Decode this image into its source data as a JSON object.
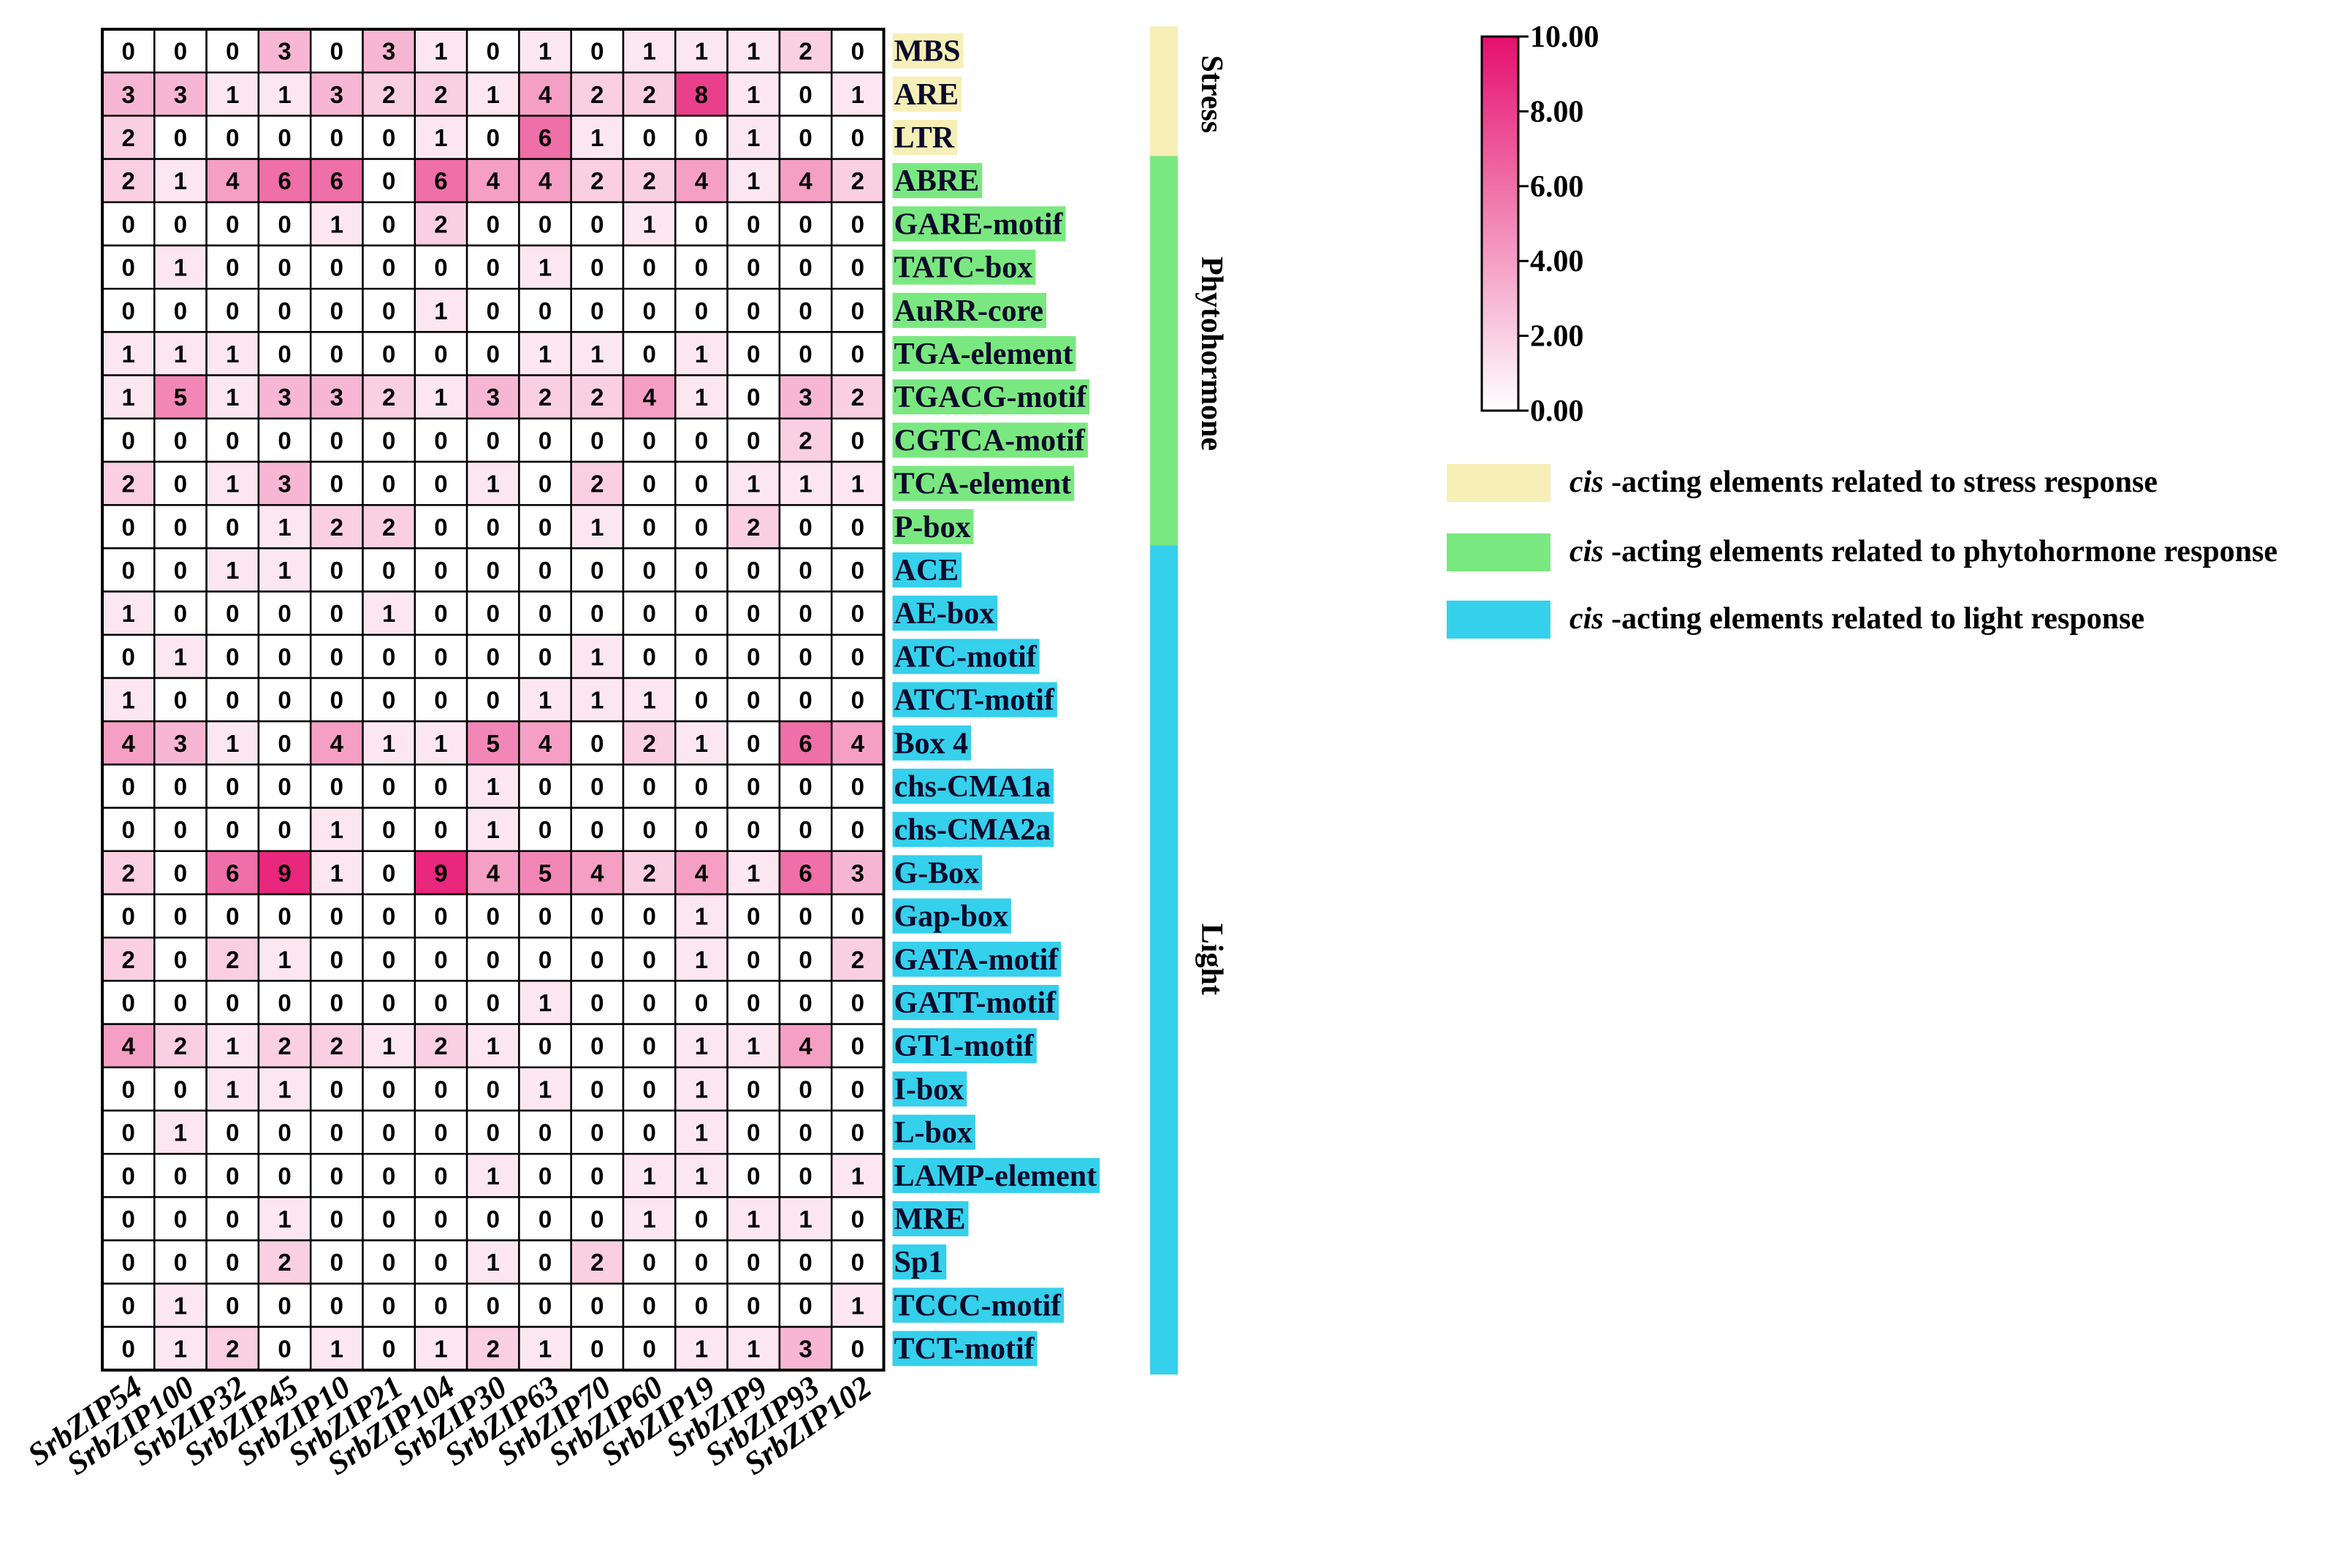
{
  "chart_data": {
    "type": "heatmap",
    "title": "",
    "xlabel": "",
    "ylabel": "",
    "columns": [
      "SrbZIP54",
      "SrbZIP100",
      "SrbZIP32",
      "SrbZIP45",
      "SrbZIP10",
      "SrbZIP21",
      "SrbZIP104",
      "SrbZIP30",
      "SrbZIP63",
      "SrbZIP70",
      "SrbZIP60",
      "SrbZIP19",
      "SrbZIP9",
      "SrbZIP93",
      "SrbZIP102"
    ],
    "rows": [
      {
        "label": "MBS",
        "group": "stress",
        "values": [
          0,
          0,
          0,
          3,
          0,
          3,
          1,
          0,
          1,
          0,
          1,
          1,
          1,
          2,
          0
        ]
      },
      {
        "label": "ARE",
        "group": "stress",
        "values": [
          3,
          3,
          1,
          1,
          3,
          2,
          2,
          1,
          4,
          2,
          2,
          8,
          1,
          0,
          1
        ]
      },
      {
        "label": "LTR",
        "group": "stress",
        "values": [
          2,
          0,
          0,
          0,
          0,
          0,
          1,
          0,
          6,
          1,
          0,
          0,
          1,
          0,
          0
        ]
      },
      {
        "label": "ABRE",
        "group": "phyto",
        "values": [
          2,
          1,
          4,
          6,
          6,
          0,
          6,
          4,
          4,
          2,
          2,
          4,
          1,
          4,
          2
        ]
      },
      {
        "label": "GARE-motif",
        "group": "phyto",
        "values": [
          0,
          0,
          0,
          0,
          1,
          0,
          2,
          0,
          0,
          0,
          1,
          0,
          0,
          0,
          0
        ]
      },
      {
        "label": "TATC-box",
        "group": "phyto",
        "values": [
          0,
          1,
          0,
          0,
          0,
          0,
          0,
          0,
          1,
          0,
          0,
          0,
          0,
          0,
          0
        ]
      },
      {
        "label": "AuRR-core",
        "group": "phyto",
        "values": [
          0,
          0,
          0,
          0,
          0,
          0,
          1,
          0,
          0,
          0,
          0,
          0,
          0,
          0,
          0
        ]
      },
      {
        "label": "TGA-element",
        "group": "phyto",
        "values": [
          1,
          1,
          1,
          0,
          0,
          0,
          0,
          0,
          1,
          1,
          0,
          1,
          0,
          0,
          0
        ]
      },
      {
        "label": "TGACG-motif",
        "group": "phyto",
        "values": [
          1,
          5,
          1,
          3,
          3,
          2,
          1,
          3,
          2,
          2,
          4,
          1,
          0,
          3,
          2
        ]
      },
      {
        "label": "CGTCA-motif",
        "group": "phyto",
        "values": [
          0,
          0,
          0,
          0,
          0,
          0,
          0,
          0,
          0,
          0,
          0,
          0,
          0,
          2,
          0
        ]
      },
      {
        "label": "TCA-element",
        "group": "phyto",
        "values": [
          2,
          0,
          1,
          3,
          0,
          0,
          0,
          1,
          0,
          2,
          0,
          0,
          1,
          1,
          1
        ]
      },
      {
        "label": "P-box",
        "group": "phyto",
        "values": [
          0,
          0,
          0,
          1,
          2,
          2,
          0,
          0,
          0,
          1,
          0,
          0,
          2,
          0,
          0
        ]
      },
      {
        "label": "ACE",
        "group": "light",
        "values": [
          0,
          0,
          1,
          1,
          0,
          0,
          0,
          0,
          0,
          0,
          0,
          0,
          0,
          0,
          0
        ]
      },
      {
        "label": "AE-box",
        "group": "light",
        "values": [
          1,
          0,
          0,
          0,
          0,
          1,
          0,
          0,
          0,
          0,
          0,
          0,
          0,
          0,
          0
        ]
      },
      {
        "label": "ATC-motif",
        "group": "light",
        "values": [
          0,
          1,
          0,
          0,
          0,
          0,
          0,
          0,
          0,
          1,
          0,
          0,
          0,
          0,
          0
        ]
      },
      {
        "label": "ATCT-motif",
        "group": "light",
        "values": [
          1,
          0,
          0,
          0,
          0,
          0,
          0,
          0,
          1,
          1,
          1,
          0,
          0,
          0,
          0
        ]
      },
      {
        "label": "Box 4",
        "group": "light",
        "values": [
          4,
          3,
          1,
          0,
          4,
          1,
          1,
          5,
          4,
          0,
          2,
          1,
          0,
          6,
          4
        ]
      },
      {
        "label": "chs-CMA1a",
        "group": "light",
        "values": [
          0,
          0,
          0,
          0,
          0,
          0,
          0,
          1,
          0,
          0,
          0,
          0,
          0,
          0,
          0
        ]
      },
      {
        "label": "chs-CMA2a",
        "group": "light",
        "values": [
          0,
          0,
          0,
          0,
          1,
          0,
          0,
          1,
          0,
          0,
          0,
          0,
          0,
          0,
          0
        ]
      },
      {
        "label": "G-Box",
        "group": "light",
        "values": [
          2,
          0,
          6,
          9,
          1,
          0,
          9,
          4,
          5,
          4,
          2,
          4,
          1,
          6,
          3
        ]
      },
      {
        "label": "Gap-box",
        "group": "light",
        "values": [
          0,
          0,
          0,
          0,
          0,
          0,
          0,
          0,
          0,
          0,
          0,
          1,
          0,
          0,
          0
        ]
      },
      {
        "label": "GATA-motif",
        "group": "light",
        "values": [
          2,
          0,
          2,
          1,
          0,
          0,
          0,
          0,
          0,
          0,
          0,
          1,
          0,
          0,
          2
        ]
      },
      {
        "label": "GATT-motif",
        "group": "light",
        "values": [
          0,
          0,
          0,
          0,
          0,
          0,
          0,
          0,
          1,
          0,
          0,
          0,
          0,
          0,
          0
        ]
      },
      {
        "label": "GT1-motif",
        "group": "light",
        "values": [
          4,
          2,
          1,
          2,
          2,
          1,
          2,
          1,
          0,
          0,
          0,
          1,
          1,
          4,
          0
        ]
      },
      {
        "label": "I-box",
        "group": "light",
        "values": [
          0,
          0,
          1,
          1,
          0,
          0,
          0,
          0,
          1,
          0,
          0,
          1,
          0,
          0,
          0
        ]
      },
      {
        "label": "L-box",
        "group": "light",
        "values": [
          0,
          1,
          0,
          0,
          0,
          0,
          0,
          0,
          0,
          0,
          0,
          1,
          0,
          0,
          0
        ]
      },
      {
        "label": "LAMP-element",
        "group": "light",
        "values": [
          0,
          0,
          0,
          0,
          0,
          0,
          0,
          1,
          0,
          0,
          1,
          1,
          0,
          0,
          1
        ]
      },
      {
        "label": "MRE",
        "group": "light",
        "values": [
          0,
          0,
          0,
          1,
          0,
          0,
          0,
          0,
          0,
          0,
          1,
          0,
          1,
          1,
          0
        ]
      },
      {
        "label": "Sp1",
        "group": "light",
        "values": [
          0,
          0,
          0,
          2,
          0,
          0,
          0,
          1,
          0,
          2,
          0,
          0,
          0,
          0,
          0
        ]
      },
      {
        "label": "TCCC-motif",
        "group": "light",
        "values": [
          0,
          1,
          0,
          0,
          0,
          0,
          0,
          0,
          0,
          0,
          0,
          0,
          0,
          0,
          1
        ]
      },
      {
        "label": "TCT-motif",
        "group": "light",
        "values": [
          0,
          1,
          2,
          0,
          1,
          0,
          1,
          2,
          1,
          0,
          0,
          1,
          1,
          3,
          0
        ]
      }
    ],
    "groups": [
      {
        "key": "stress",
        "label": "Stress",
        "color": "#f6efb7",
        "rows": 3
      },
      {
        "key": "phyto",
        "label": "Phytohormone",
        "color": "#7ae880",
        "rows": 9
      },
      {
        "key": "light",
        "label": "Light",
        "color": "#35d0ec",
        "rows": 19
      }
    ],
    "colorscale": {
      "min": 0,
      "max": 10,
      "low_color": "#ffffff",
      "high_color": "#e50f6e",
      "ticks": [
        "10.00",
        "8.00",
        "6.00",
        "4.00",
        "2.00",
        "0.00"
      ],
      "tick_values": [
        10,
        8,
        6,
        4,
        2,
        0
      ]
    },
    "legend": {
      "italic_prefix": "cis",
      "entries": [
        {
          "group": "stress",
          "text": " -acting elements  related to stress response"
        },
        {
          "group": "phyto",
          "text": " -acting elements  related to phytohormone response"
        },
        {
          "group": "light",
          "text": " -acting elements  related to light response"
        }
      ]
    }
  }
}
